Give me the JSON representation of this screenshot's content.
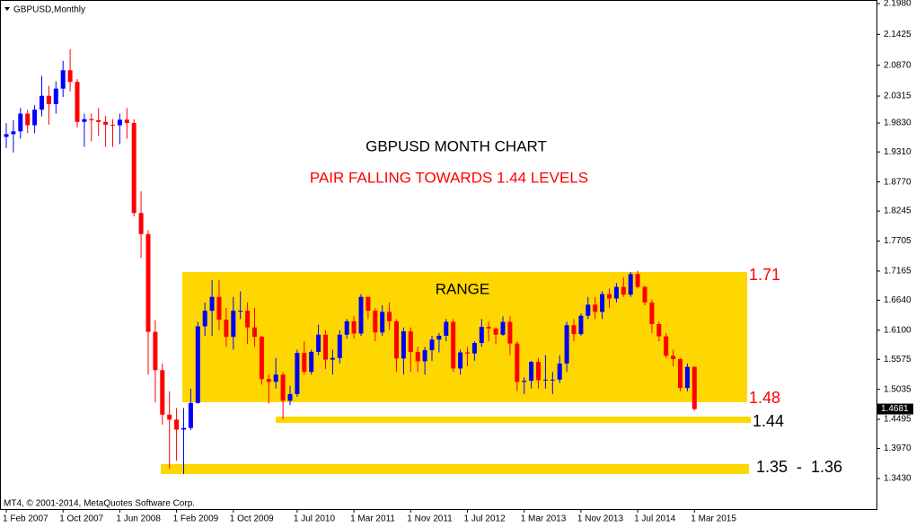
{
  "chart_data": {
    "type": "candlestick",
    "title": "GBPUSD,Monthly",
    "copyright": "MT4, © 2001-2014, MetaQuotes Software Corp.",
    "heading": "GBPUSD MONTH CHART",
    "subheading": "PAIR FALLING TOWARDS 1.44 LEVELS",
    "range_label": "RANGE",
    "level_labels": [
      "1.71",
      "1.48",
      "1.44",
      "1.35  -  1.36"
    ],
    "up_color": "#0000ff",
    "down_color": "#ff0000",
    "categories": [
      "1 Feb 2007",
      null,
      null,
      null,
      null,
      null,
      null,
      null,
      "1 Oct 2007",
      null,
      null,
      null,
      null,
      null,
      null,
      null,
      "1 Jun 2008",
      null,
      null,
      null,
      null,
      null,
      null,
      null,
      "1 Feb 2009",
      null,
      null,
      null,
      null,
      null,
      null,
      null,
      "1 Oct 2009",
      null,
      null,
      null,
      null,
      null,
      null,
      null,
      null,
      "1 Jul 2010",
      null,
      null,
      null,
      null,
      null,
      null,
      null,
      "1 Mar 2011",
      null,
      null,
      null,
      null,
      null,
      null,
      null,
      "1 Nov 2011",
      null,
      null,
      null,
      null,
      null,
      null,
      null,
      "1 Jul 2012",
      null,
      null,
      null,
      null,
      null,
      null,
      null,
      "1 Mar 2013",
      null,
      null,
      null,
      null,
      null,
      null,
      null,
      "1 Nov 2013",
      null,
      null,
      null,
      null,
      null,
      null,
      null,
      "1 Jul 2014",
      null,
      null,
      null,
      null,
      null,
      null,
      null,
      "1 Mar 2015"
    ],
    "open": [
      1.958,
      1.963,
      1.968,
      2.0,
      1.979,
      2.007,
      2.032,
      2.017,
      2.045,
      2.078,
      2.057,
      1.985,
      1.99,
      1.988,
      1.985,
      1.98,
      1.979,
      1.989,
      1.983,
      1.821,
      1.783,
      1.607,
      1.538,
      1.458,
      1.449,
      1.431,
      1.434,
      1.479,
      1.617,
      1.645,
      1.67,
      1.629,
      1.598,
      1.645,
      1.645,
      1.615,
      1.598,
      1.522,
      1.517,
      1.53,
      1.483,
      1.495,
      1.569,
      1.535,
      1.571,
      1.602,
      1.557,
      1.56,
      1.602,
      1.626,
      1.604,
      1.67,
      1.645,
      1.606,
      1.643,
      1.626,
      1.559,
      1.608,
      1.571,
      1.554,
      1.574,
      1.593,
      1.6,
      1.625,
      1.541,
      1.57,
      1.568,
      1.587,
      1.616,
      1.613,
      1.602,
      1.625,
      1.586,
      1.517,
      1.519,
      1.553,
      1.52,
      1.521,
      1.521,
      1.55,
      1.619,
      1.603,
      1.636,
      1.656,
      1.643,
      1.675,
      1.667,
      1.688,
      1.674,
      1.711,
      1.688,
      1.66,
      1.621,
      1.599,
      1.564,
      1.558,
      1.506,
      1.544
    ],
    "high": [
      1.983,
      1.988,
      2.01,
      2.007,
      2.015,
      2.068,
      2.05,
      2.058,
      2.095,
      2.116,
      2.062,
      2.0,
      2.0,
      2.01,
      1.996,
      1.99,
      2.0,
      2.01,
      1.99,
      1.86,
      1.79,
      1.628,
      1.55,
      1.5,
      1.47,
      1.47,
      1.505,
      1.625,
      1.66,
      1.7,
      1.7,
      1.65,
      1.67,
      1.68,
      1.66,
      1.65,
      1.6,
      1.53,
      1.56,
      1.535,
      1.51,
      1.575,
      1.59,
      1.575,
      1.62,
      1.61,
      1.575,
      1.61,
      1.63,
      1.635,
      1.675,
      1.67,
      1.65,
      1.655,
      1.66,
      1.63,
      1.615,
      1.615,
      1.58,
      1.58,
      1.6,
      1.605,
      1.63,
      1.63,
      1.575,
      1.58,
      1.59,
      1.63,
      1.625,
      1.615,
      1.635,
      1.635,
      1.59,
      1.525,
      1.555,
      1.56,
      1.565,
      1.535,
      1.565,
      1.625,
      1.63,
      1.64,
      1.67,
      1.67,
      1.68,
      1.685,
      1.695,
      1.705,
      1.715,
      1.717,
      1.69,
      1.665,
      1.625,
      1.605,
      1.575,
      1.56,
      1.55,
      1.545
    ],
    "low": [
      1.938,
      1.93,
      1.955,
      1.965,
      1.965,
      1.995,
      1.98,
      2.0,
      2.03,
      2.04,
      1.975,
      1.94,
      1.95,
      1.96,
      1.94,
      1.94,
      1.945,
      1.955,
      1.815,
      1.74,
      1.53,
      1.48,
      1.44,
      1.36,
      1.375,
      1.351,
      1.43,
      1.478,
      1.6,
      1.6,
      1.61,
      1.58,
      1.575,
      1.63,
      1.585,
      1.58,
      1.512,
      1.478,
      1.505,
      1.4495,
      1.475,
      1.49,
      1.53,
      1.53,
      1.565,
      1.54,
      1.53,
      1.55,
      1.595,
      1.595,
      1.6,
      1.63,
      1.59,
      1.6,
      1.61,
      1.535,
      1.53,
      1.535,
      1.535,
      1.53,
      1.555,
      1.57,
      1.59,
      1.535,
      1.53,
      1.545,
      1.555,
      1.58,
      1.59,
      1.585,
      1.6,
      1.565,
      1.5,
      1.495,
      1.505,
      1.505,
      1.505,
      1.495,
      1.515,
      1.535,
      1.59,
      1.6,
      1.63,
      1.63,
      1.63,
      1.65,
      1.66,
      1.67,
      1.67,
      1.685,
      1.655,
      1.605,
      1.59,
      1.56,
      1.545,
      1.5,
      1.5,
      1.465
    ],
    "close": [
      1.963,
      1.968,
      2.0,
      1.979,
      2.007,
      2.032,
      2.017,
      2.045,
      2.078,
      2.057,
      1.985,
      1.99,
      1.988,
      1.985,
      1.98,
      1.979,
      1.989,
      1.983,
      1.821,
      1.783,
      1.607,
      1.538,
      1.458,
      1.449,
      1.431,
      1.434,
      1.479,
      1.617,
      1.645,
      1.67,
      1.629,
      1.598,
      1.645,
      1.645,
      1.615,
      1.598,
      1.522,
      1.517,
      1.53,
      1.483,
      1.495,
      1.569,
      1.535,
      1.571,
      1.602,
      1.557,
      1.56,
      1.602,
      1.626,
      1.604,
      1.67,
      1.645,
      1.606,
      1.643,
      1.626,
      1.559,
      1.608,
      1.571,
      1.554,
      1.574,
      1.593,
      1.6,
      1.625,
      1.541,
      1.57,
      1.568,
      1.587,
      1.616,
      1.613,
      1.602,
      1.625,
      1.586,
      1.517,
      1.519,
      1.553,
      1.52,
      1.521,
      1.521,
      1.55,
      1.619,
      1.603,
      1.636,
      1.656,
      1.643,
      1.675,
      1.667,
      1.688,
      1.674,
      1.711,
      1.688,
      1.66,
      1.621,
      1.599,
      1.564,
      1.558,
      1.506,
      1.544,
      1.468
    ],
    "current_price": 1.4681,
    "ylim": [
      1.288,
      2.2045
    ],
    "yticks": [
      {
        "value": 2.198,
        "label": "2.1980"
      },
      2.1425,
      {
        "value": 2.087,
        "label": "2.0870"
      },
      2.0315,
      {
        "value": 1.983,
        "label": "1.9830"
      },
      {
        "value": 1.931,
        "label": "1.9310"
      },
      {
        "value": 1.877,
        "label": "1.8770"
      },
      1.8245,
      1.7705,
      1.7165,
      {
        "value": 1.664,
        "label": "1.6640"
      },
      {
        "value": 1.61,
        "label": "1.6100"
      },
      1.5575,
      1.5035,
      1.4495,
      {
        "value": 1.397,
        "label": "1.3970"
      },
      {
        "value": 1.343,
        "label": "1.3430"
      }
    ]
  }
}
